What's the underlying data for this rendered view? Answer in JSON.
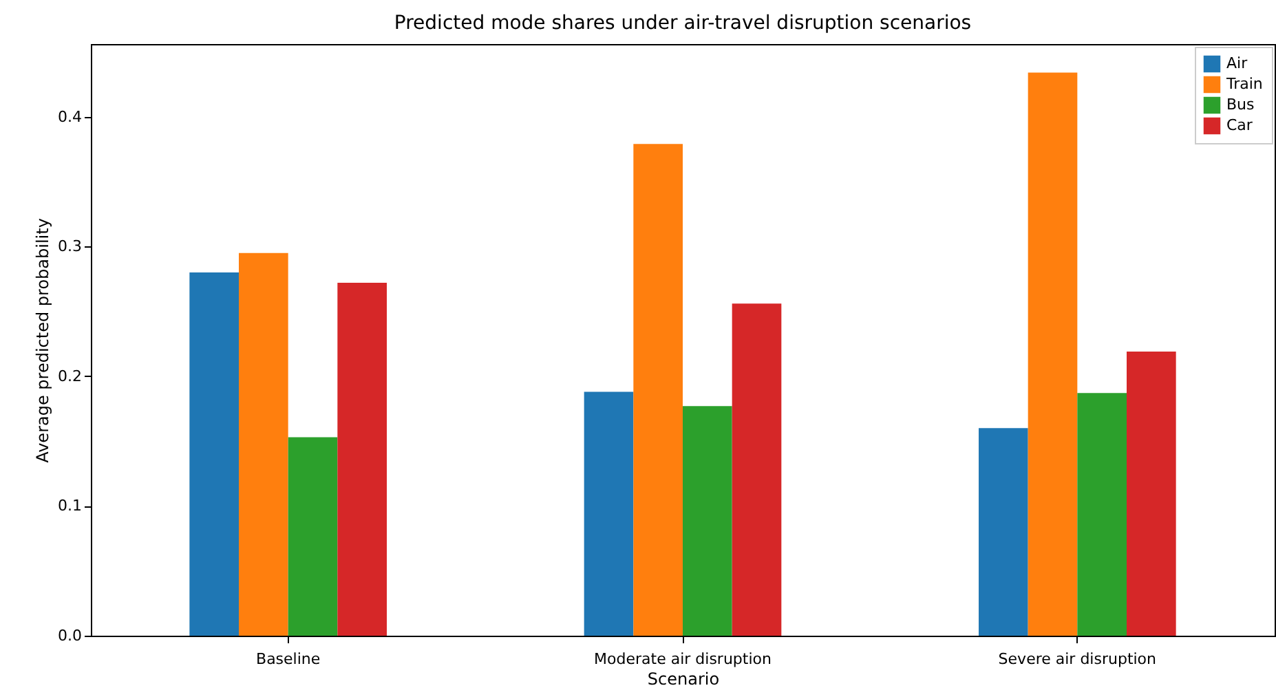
{
  "chart_data": {
    "type": "bar",
    "title": "Predicted mode shares under air-travel disruption scenarios",
    "xlabel": "Scenario",
    "ylabel": "Average predicted probability",
    "categories": [
      "Baseline",
      "Moderate air disruption",
      "Severe air disruption"
    ],
    "series": [
      {
        "name": "Air",
        "color": "#1f77b4",
        "values": [
          0.28,
          0.188,
          0.16
        ]
      },
      {
        "name": "Train",
        "color": "#ff7f0e",
        "values": [
          0.295,
          0.379,
          0.434
        ]
      },
      {
        "name": "Bus",
        "color": "#2ca02c",
        "values": [
          0.153,
          0.177,
          0.187
        ]
      },
      {
        "name": "Car",
        "color": "#d62728",
        "values": [
          0.272,
          0.256,
          0.219
        ]
      }
    ],
    "ylim": [
      0,
      0.456
    ],
    "yticks": [
      {
        "value": 0,
        "label": "0.0"
      },
      0.1,
      0.2,
      0.3,
      0.4
    ],
    "grid": false,
    "legend": "top right"
  }
}
